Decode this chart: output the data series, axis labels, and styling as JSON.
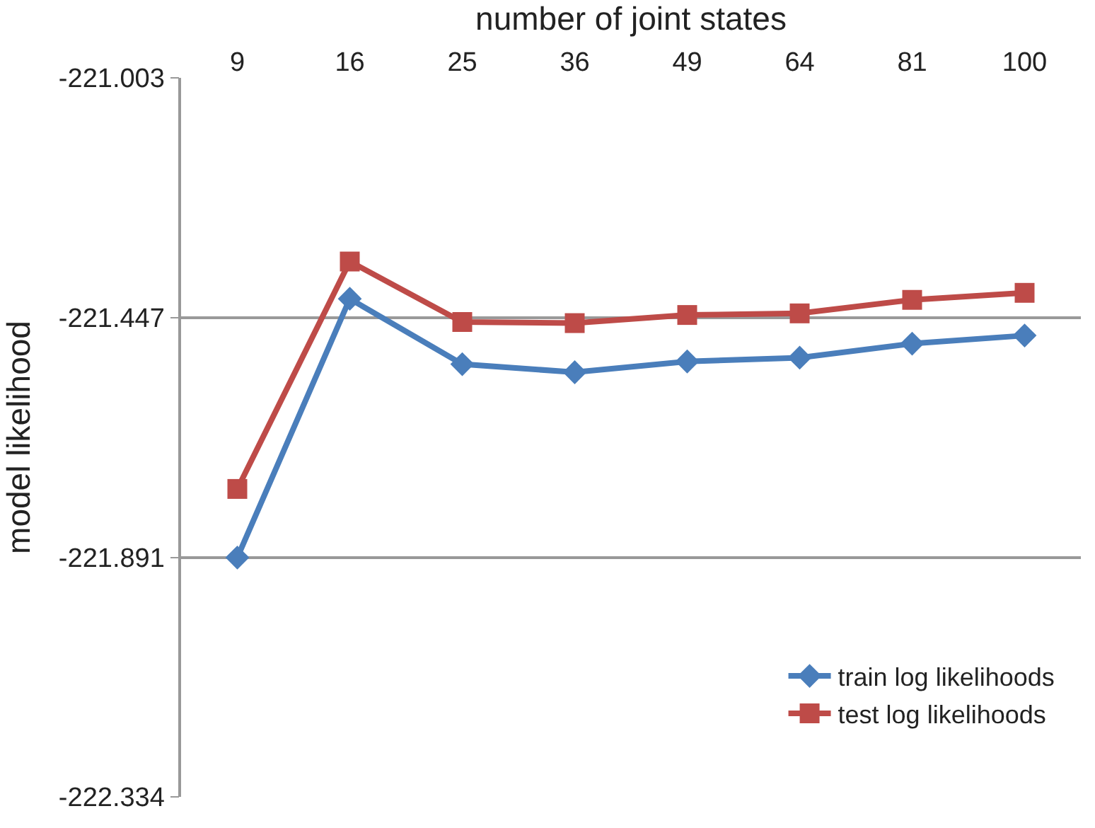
{
  "chart_data": {
    "type": "line",
    "xlabel": "number of joint states",
    "ylabel": "model likelihood",
    "categories": [
      "9",
      "16",
      "25",
      "36",
      "49",
      "64",
      "81",
      "100"
    ],
    "series": [
      {
        "name": "train log likelihoods",
        "color": "#4a7ebb",
        "marker": "diamond",
        "values": [
          -221.891,
          -221.412,
          -221.533,
          -221.548,
          -221.528,
          -221.521,
          -221.495,
          -221.48
        ]
      },
      {
        "name": "test log likelihoods",
        "color": "#be4b48",
        "marker": "square",
        "values": [
          -221.764,
          -221.343,
          -221.455,
          -221.457,
          -221.442,
          -221.439,
          -221.414,
          -221.401
        ]
      }
    ],
    "ylim": [
      -222.334,
      -221.003
    ],
    "yticks": [
      -222.334,
      -221.891,
      -221.447,
      -221.003
    ],
    "grid": "y",
    "legend": "bottom right",
    "line_style": "solid"
  }
}
